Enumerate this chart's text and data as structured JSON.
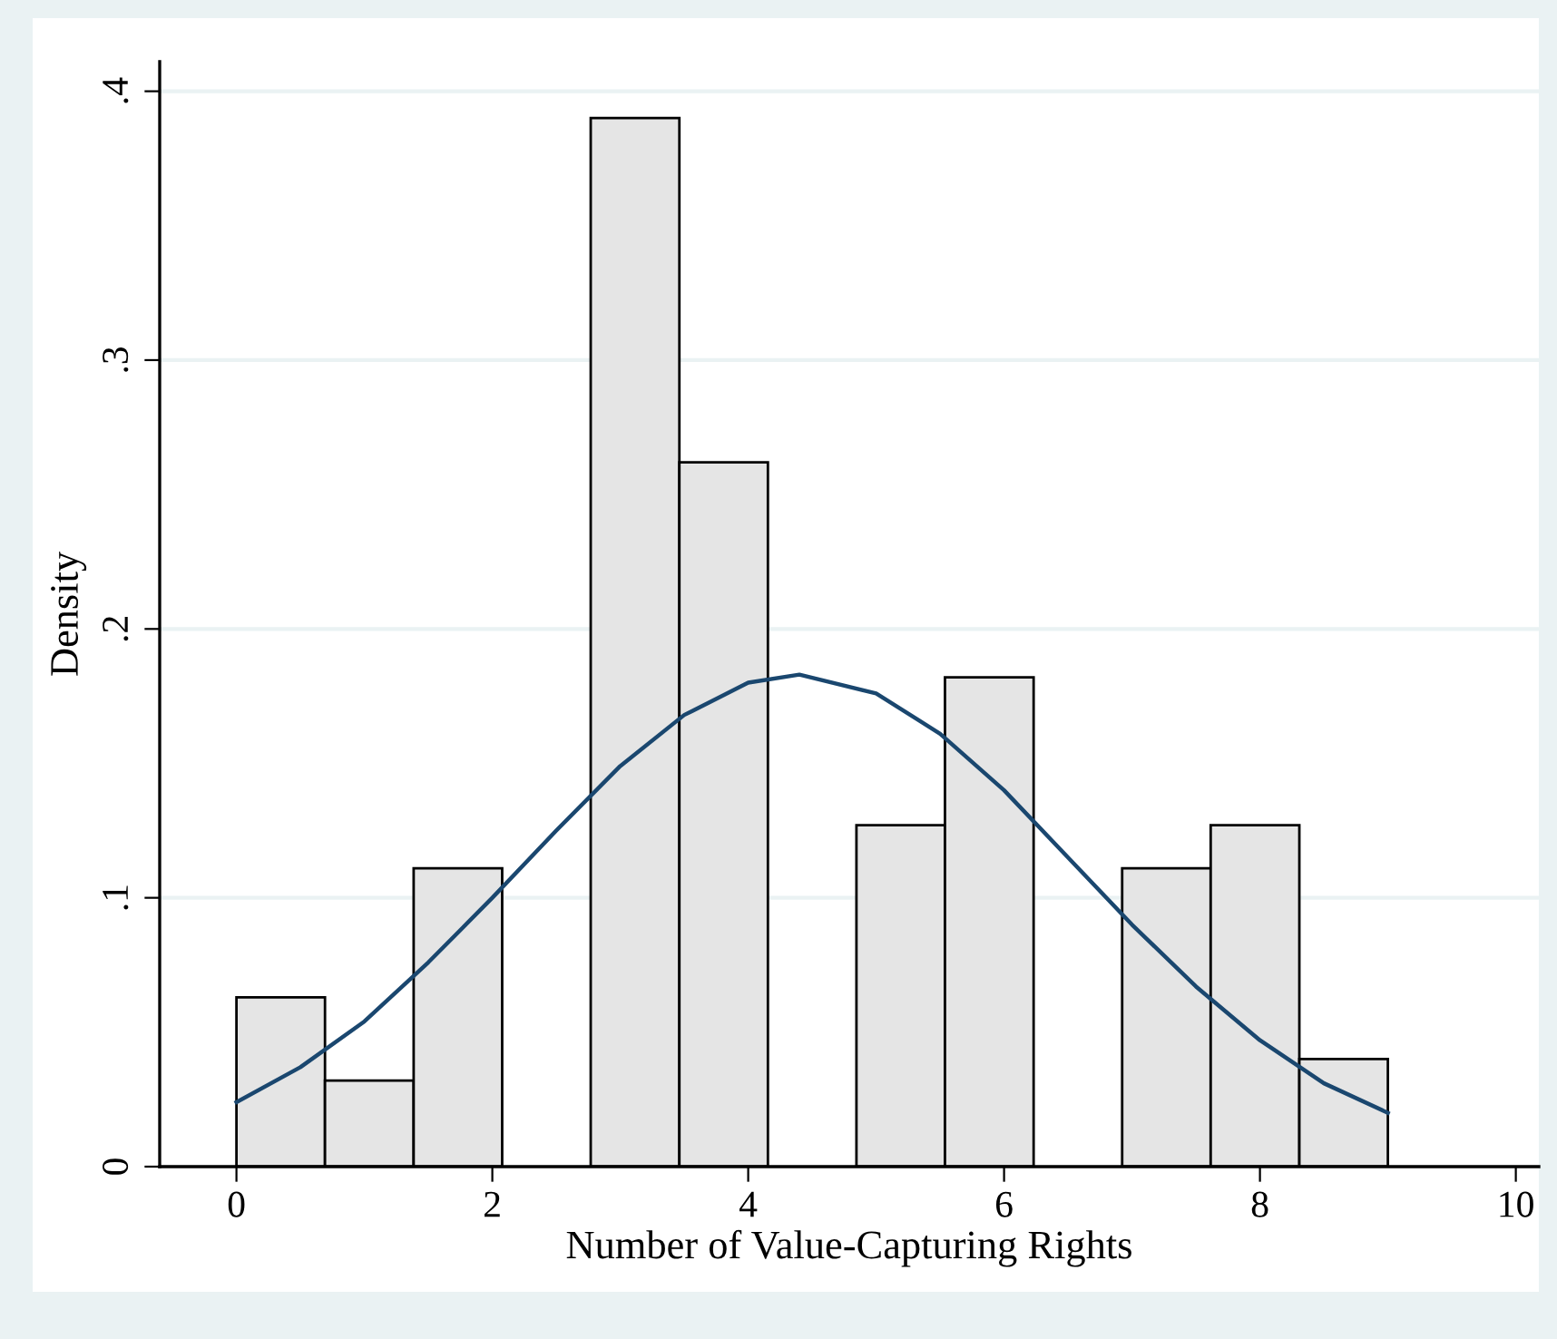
{
  "chart_data": {
    "type": "histogram",
    "xlabel": "Number of Value-Capturing Rights",
    "ylabel": "Density",
    "bins": [
      0,
      0.692,
      1.385,
      2.077,
      2.769,
      3.462,
      4.154,
      4.846,
      5.538,
      6.231,
      6.923,
      7.615,
      8.308,
      9
    ],
    "values": [
      0.063,
      0.032,
      0.111,
      0,
      0.39,
      0.262,
      0,
      0.127,
      0.182,
      0,
      0.111,
      0.127,
      0.04
    ],
    "color": "#e5e5e5",
    "series": [
      {
        "type": "line",
        "color": "#1a476f",
        "x": [
          0,
          0.5,
          1,
          1.5,
          2,
          2.5,
          3,
          3.5,
          4,
          4.4,
          5,
          5.5,
          6,
          6.5,
          7,
          7.5,
          8,
          8.5,
          9
        ],
        "values": [
          0.024,
          0.037,
          0.054,
          0.076,
          0.1,
          0.125,
          0.149,
          0.168,
          0.18,
          0.183,
          0.176,
          0.161,
          0.14,
          0.115,
          0.09,
          0.067,
          0.047,
          0.031,
          0.02
        ]
      }
    ],
    "xlim": [
      -0.6,
      10.18
    ],
    "ylim": [
      0,
      0.411
    ],
    "xticks": [
      0,
      2,
      4,
      6,
      8,
      10
    ],
    "yticks": [
      0,
      {
        "value": 0.1,
        "label": ".1"
      },
      {
        "value": 0.2,
        "label": ".2"
      },
      {
        "value": 0.3,
        "label": ".3"
      },
      {
        "value": 0.4,
        "label": ".4"
      }
    ],
    "grid": "y",
    "marker": "none",
    "line_style": "solid"
  }
}
